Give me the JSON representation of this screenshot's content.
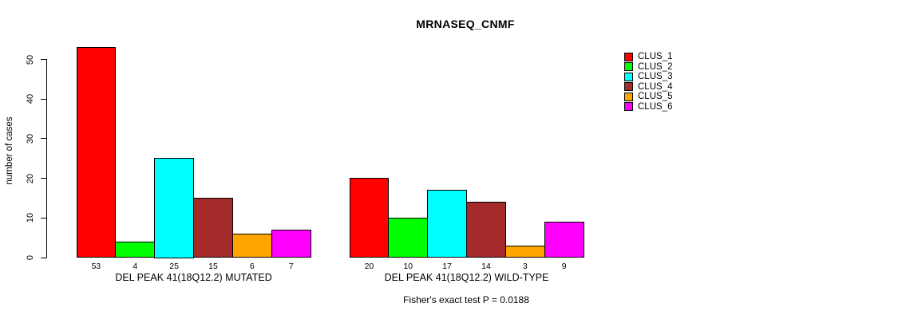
{
  "title": "MRNASEQ_CNMF",
  "footer": "Fisher's exact test P = 0.0188",
  "y_axis": {
    "label": "number of cases",
    "ticks": [
      0,
      10,
      20,
      30,
      40,
      50
    ]
  },
  "legend": {
    "position": "top-right"
  },
  "chart_data": {
    "type": "bar",
    "title": "MRNASEQ_CNMF",
    "xlabel": "",
    "ylabel": "number of cases",
    "ylim": [
      0,
      53
    ],
    "yticks": [
      0,
      10,
      20,
      30,
      40,
      50
    ],
    "grid": false,
    "legend_position": "top-right",
    "series": [
      {
        "name": "CLUS_1",
        "color": "#FF0000"
      },
      {
        "name": "CLUS_2",
        "color": "#00FF00"
      },
      {
        "name": "CLUS_3",
        "color": "#00FFFF"
      },
      {
        "name": "CLUS_4",
        "color": "#A52A2A"
      },
      {
        "name": "CLUS_5",
        "color": "#FFA500"
      },
      {
        "name": "CLUS_6",
        "color": "#FF00FF"
      }
    ],
    "groups": [
      {
        "label": "DEL PEAK 41(18Q12.2) MUTATED",
        "values": [
          53,
          4,
          25,
          15,
          6,
          7
        ]
      },
      {
        "label": "DEL PEAK 41(18Q12.2) WILD-TYPE",
        "values": [
          20,
          10,
          17,
          14,
          3,
          9
        ]
      }
    ],
    "annotation": "Fisher's exact test P = 0.0188"
  }
}
